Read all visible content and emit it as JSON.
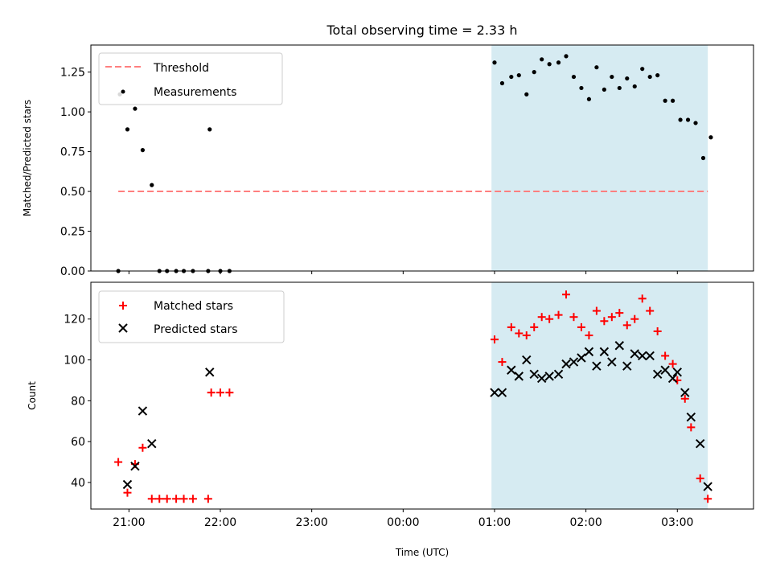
{
  "chart_data": [
    {
      "type": "scatter",
      "title": "Total observing time = 2.33 h",
      "xlabel": "",
      "ylabel": "Matched/Predicted stars",
      "xlim": [
        "20:35",
        "03:50"
      ],
      "ylim": [
        0,
        1.42
      ],
      "yticks": [
        "0.00",
        "0.25",
        "0.50",
        "0.75",
        "1.00",
        "1.25"
      ],
      "shaded_span": [
        "00:58",
        "03:20"
      ],
      "legend": {
        "placement": "top-left",
        "entries": [
          "Threshold",
          "Measurements"
        ]
      },
      "threshold": {
        "name": "Threshold",
        "value": 0.5,
        "x_range": [
          "20:53",
          "03:20"
        ],
        "color": "#ff7f7f"
      },
      "series": [
        {
          "name": "Measurements",
          "color": "#000000",
          "points": [
            [
              "20:53",
              0.0
            ],
            [
              "20:54",
              1.11
            ],
            [
              "20:59",
              0.89
            ],
            [
              "21:04",
              1.02
            ],
            [
              "21:09",
              0.76
            ],
            [
              "21:15",
              0.54
            ],
            [
              "21:20",
              0.0
            ],
            [
              "21:25",
              0.0
            ],
            [
              "21:31",
              0.0
            ],
            [
              "21:36",
              0.0
            ],
            [
              "21:42",
              0.0
            ],
            [
              "21:52",
              0.0
            ],
            [
              "21:53",
              0.89
            ],
            [
              "22:00",
              0.0
            ],
            [
              "22:06",
              0.0
            ],
            [
              "01:00",
              1.31
            ],
            [
              "01:05",
              1.18
            ],
            [
              "01:11",
              1.22
            ],
            [
              "01:16",
              1.23
            ],
            [
              "01:21",
              1.11
            ],
            [
              "01:26",
              1.25
            ],
            [
              "01:31",
              1.33
            ],
            [
              "01:36",
              1.3
            ],
            [
              "01:42",
              1.31
            ],
            [
              "01:47",
              1.35
            ],
            [
              "01:52",
              1.22
            ],
            [
              "01:57",
              1.15
            ],
            [
              "02:02",
              1.08
            ],
            [
              "02:07",
              1.28
            ],
            [
              "02:12",
              1.14
            ],
            [
              "02:17",
              1.22
            ],
            [
              "02:22",
              1.15
            ],
            [
              "02:27",
              1.21
            ],
            [
              "02:32",
              1.16
            ],
            [
              "02:37",
              1.27
            ],
            [
              "02:42",
              1.22
            ],
            [
              "02:47",
              1.23
            ],
            [
              "02:52",
              1.07
            ],
            [
              "02:57",
              1.07
            ],
            [
              "03:02",
              0.95
            ],
            [
              "03:07",
              0.95
            ],
            [
              "03:12",
              0.93
            ],
            [
              "03:17",
              0.71
            ],
            [
              "03:22",
              0.84
            ]
          ]
        }
      ]
    },
    {
      "type": "scatter",
      "title": "",
      "xlabel": "Time (UTC)",
      "ylabel": "Count",
      "xlim": [
        "20:35",
        "03:50"
      ],
      "ylim": [
        27,
        138
      ],
      "yticks": [
        "40",
        "60",
        "80",
        "100",
        "120"
      ],
      "xticks": [
        "21:00",
        "22:00",
        "23:00",
        "00:00",
        "01:00",
        "02:00",
        "03:00"
      ],
      "shaded_span": [
        "00:58",
        "03:20"
      ],
      "legend": {
        "placement": "top-left",
        "entries": [
          "Matched stars",
          "Predicted stars"
        ]
      },
      "series": [
        {
          "name": "Matched stars",
          "marker": "+",
          "color": "#ff0000",
          "points": [
            [
              "20:53",
              50
            ],
            [
              "20:59",
              35
            ],
            [
              "21:04",
              49
            ],
            [
              "21:09",
              57
            ],
            [
              "21:15",
              32
            ],
            [
              "21:20",
              32
            ],
            [
              "21:25",
              32
            ],
            [
              "21:31",
              32
            ],
            [
              "21:36",
              32
            ],
            [
              "21:42",
              32
            ],
            [
              "21:52",
              32
            ],
            [
              "21:54",
              84
            ],
            [
              "22:00",
              84
            ],
            [
              "22:06",
              84
            ],
            [
              "01:00",
              110
            ],
            [
              "01:05",
              99
            ],
            [
              "01:11",
              116
            ],
            [
              "01:16",
              113
            ],
            [
              "01:21",
              112
            ],
            [
              "01:26",
              116
            ],
            [
              "01:31",
              121
            ],
            [
              "01:36",
              120
            ],
            [
              "01:42",
              122
            ],
            [
              "01:47",
              132
            ],
            [
              "01:52",
              121
            ],
            [
              "01:57",
              116
            ],
            [
              "02:02",
              112
            ],
            [
              "02:07",
              124
            ],
            [
              "02:12",
              119
            ],
            [
              "02:17",
              121
            ],
            [
              "02:22",
              123
            ],
            [
              "02:27",
              117
            ],
            [
              "02:32",
              120
            ],
            [
              "02:37",
              130
            ],
            [
              "02:42",
              124
            ],
            [
              "02:47",
              114
            ],
            [
              "02:52",
              102
            ],
            [
              "02:57",
              98
            ],
            [
              "03:00",
              90
            ],
            [
              "03:05",
              81
            ],
            [
              "03:09",
              67
            ],
            [
              "03:15",
              42
            ],
            [
              "03:20",
              32
            ]
          ]
        },
        {
          "name": "Predicted stars",
          "marker": "x",
          "color": "#000000",
          "points": [
            [
              "20:59",
              39
            ],
            [
              "21:04",
              48
            ],
            [
              "21:09",
              75
            ],
            [
              "21:15",
              59
            ],
            [
              "21:53",
              94
            ],
            [
              "01:00",
              84
            ],
            [
              "01:05",
              84
            ],
            [
              "01:11",
              95
            ],
            [
              "01:16",
              92
            ],
            [
              "01:21",
              100
            ],
            [
              "01:26",
              93
            ],
            [
              "01:31",
              91
            ],
            [
              "01:36",
              92
            ],
            [
              "01:42",
              93
            ],
            [
              "01:47",
              98
            ],
            [
              "01:52",
              99
            ],
            [
              "01:57",
              101
            ],
            [
              "02:02",
              104
            ],
            [
              "02:07",
              97
            ],
            [
              "02:12",
              104
            ],
            [
              "02:17",
              99
            ],
            [
              "02:22",
              107
            ],
            [
              "02:27",
              97
            ],
            [
              "02:32",
              103
            ],
            [
              "02:37",
              102
            ],
            [
              "02:42",
              102
            ],
            [
              "02:47",
              93
            ],
            [
              "02:52",
              95
            ],
            [
              "02:57",
              91
            ],
            [
              "03:00",
              94
            ],
            [
              "03:05",
              84
            ],
            [
              "03:09",
              72
            ],
            [
              "03:15",
              59
            ],
            [
              "03:20",
              38
            ]
          ]
        }
      ]
    }
  ]
}
